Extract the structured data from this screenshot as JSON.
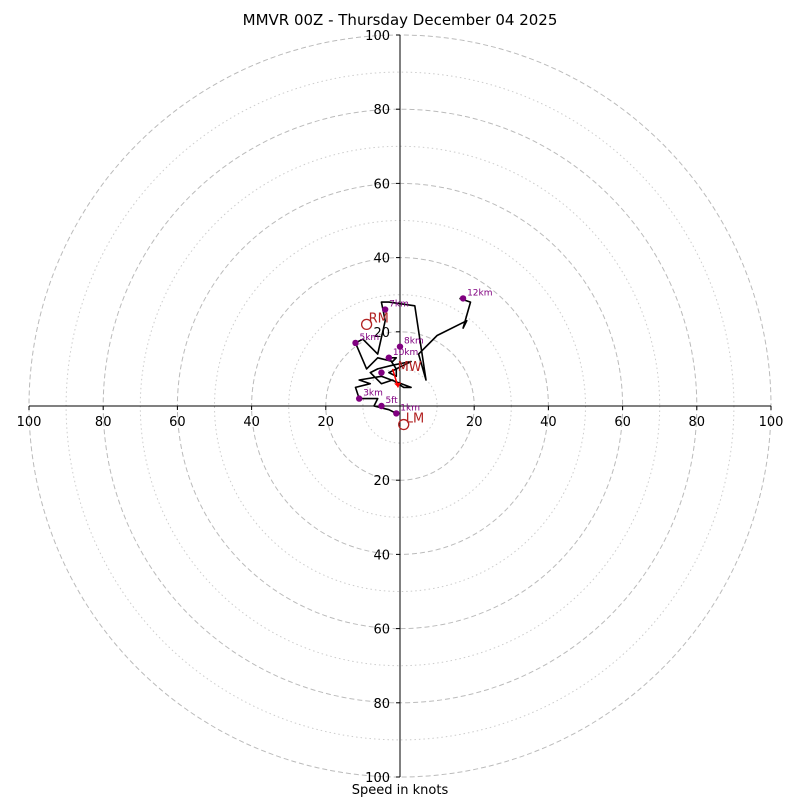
{
  "chart_data": {
    "type": "hodograph",
    "title": "MMVR 00Z - Thursday December 04 2025",
    "xlabel": "Speed in knots",
    "speed_rings_major": [
      20,
      40,
      60,
      80,
      100
    ],
    "speed_rings_minor": [
      10,
      30,
      50,
      70,
      90
    ],
    "axis_range": [
      -100,
      100
    ],
    "x_tick_labels": [
      "100",
      "80",
      "60",
      "40",
      "20",
      "20",
      "40",
      "60",
      "80",
      "100"
    ],
    "y_tick_labels": [
      "100",
      "80",
      "60",
      "40",
      "20",
      "20",
      "40",
      "60",
      "80",
      "100"
    ],
    "grid": true,
    "trace": {
      "u": [
        -1,
        -3,
        -7,
        -6,
        -11,
        -12,
        -8,
        -11,
        -5,
        3,
        1,
        -2,
        -5,
        -8,
        -6,
        -2,
        3,
        -3,
        -1,
        -1,
        -3,
        -1,
        -2,
        -6,
        -9,
        -12,
        -10,
        -6,
        -4,
        -5,
        -3,
        4,
        7,
        5,
        10,
        18,
        17,
        19,
        16
      ],
      "v": [
        -2,
        -1,
        0,
        2,
        2,
        5,
        6,
        7,
        8,
        5,
        5,
        7,
        6,
        9,
        10,
        11,
        12,
        9,
        8,
        10,
        13,
        13,
        12,
        13,
        10,
        17,
        18,
        14,
        23,
        28,
        28,
        27,
        7,
        14,
        19,
        23,
        21,
        28,
        29
      ]
    },
    "height_markers": [
      {
        "label": "1km",
        "u": -1,
        "v": -2
      },
      {
        "label": "5ft",
        "u": -5,
        "v": 0
      },
      {
        "label": "3km",
        "u": -11,
        "v": 2
      },
      {
        "label": "",
        "u": -5,
        "v": 9
      },
      {
        "label": "",
        "u": -3,
        "v": 13
      },
      {
        "label": "10km",
        "u": -3,
        "v": 13
      },
      {
        "label": "8km",
        "u": 0,
        "v": 16
      },
      {
        "label": "5km",
        "u": -12,
        "v": 17
      },
      {
        "label": "7km",
        "u": -4,
        "v": 26
      },
      {
        "label": "12km",
        "u": 17,
        "v": 29
      }
    ],
    "storm_motion": [
      {
        "label": "RM",
        "u": -9,
        "v": 22
      },
      {
        "label": "LM",
        "u": 1,
        "v": -5
      },
      {
        "label": "MW",
        "u": -2,
        "v": 10
      }
    ],
    "colors": {
      "trace": "#000000",
      "marker": "#800080",
      "storm_motion": "#b22222",
      "mean_wind_arrow": "#ff0000",
      "grid_major": "#bbbbbb",
      "grid_minor": "#cccccc"
    }
  }
}
